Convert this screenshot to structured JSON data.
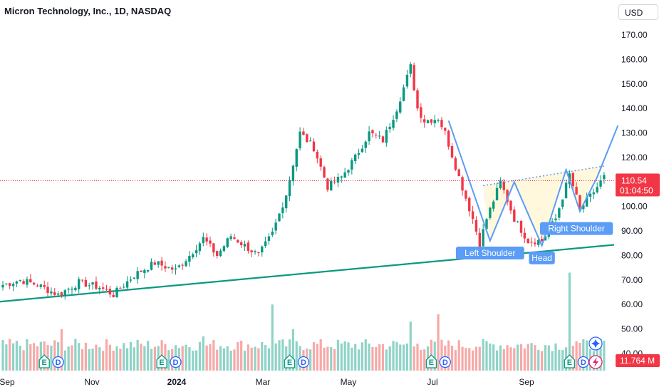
{
  "header": {
    "title": "Micron Technology, Inc., 1D, NASDAQ",
    "currency": "USD"
  },
  "chart_data": {
    "type": "candlestick",
    "y_axis": {
      "ticks": [
        "170.00",
        "160.00",
        "150.00",
        "140.00",
        "130.00",
        "120.00",
        "110.00",
        "100.00",
        "90.00",
        "80.00",
        "70.00",
        "60.00",
        "50.00",
        "40.00"
      ],
      "ylim": [
        36,
        178
      ]
    },
    "x_axis": {
      "ticks": [
        {
          "label": "Sep",
          "bold": false
        },
        {
          "label": "Nov",
          "bold": false
        },
        {
          "label": "2024",
          "bold": true
        },
        {
          "label": "Mar",
          "bold": false
        },
        {
          "label": "May",
          "bold": false
        },
        {
          "label": "Jul",
          "bold": false
        },
        {
          "label": "Sep",
          "bold": false
        }
      ]
    },
    "last_price": {
      "value": 110.54,
      "label": "110.54",
      "countdown": "01:04:50"
    },
    "volume_label": "11.764 M",
    "price_path": [
      [
        0,
        68
      ],
      [
        5,
        70
      ],
      [
        10,
        68
      ],
      [
        16,
        64
      ],
      [
        22,
        69
      ],
      [
        28,
        67
      ],
      [
        32,
        64
      ],
      [
        38,
        72
      ],
      [
        44,
        77
      ],
      [
        50,
        74
      ],
      [
        54,
        80
      ],
      [
        58,
        87
      ],
      [
        62,
        80
      ],
      [
        66,
        88
      ],
      [
        70,
        84
      ],
      [
        74,
        80
      ],
      [
        78,
        89
      ],
      [
        82,
        105
      ],
      [
        86,
        130
      ],
      [
        90,
        124
      ],
      [
        94,
        108
      ],
      [
        98,
        112
      ],
      [
        102,
        120
      ],
      [
        106,
        130
      ],
      [
        110,
        127
      ],
      [
        114,
        140
      ],
      [
        118,
        157
      ],
      [
        120,
        140
      ],
      [
        122,
        135
      ],
      [
        126,
        136
      ],
      [
        128,
        130
      ],
      [
        132,
        112
      ],
      [
        136,
        95
      ],
      [
        138,
        85
      ],
      [
        140,
        95
      ],
      [
        144,
        110
      ],
      [
        148,
        95
      ],
      [
        152,
        86
      ],
      [
        156,
        86
      ],
      [
        160,
        95
      ],
      [
        164,
        113
      ],
      [
        167,
        99
      ],
      [
        170,
        104
      ],
      [
        174,
        112
      ]
    ],
    "volume_spikes": [
      {
        "bar": 17,
        "value": 50
      },
      {
        "bar": 58,
        "value": 47
      },
      {
        "bar": 78,
        "value": 60
      },
      {
        "bar": 84,
        "value": 50
      },
      {
        "bar": 118,
        "value": 53
      },
      {
        "bar": 120,
        "value": 44
      },
      {
        "bar": 126,
        "value": 56
      },
      {
        "bar": 164,
        "value": 73
      },
      {
        "bar": 166,
        "value": 45
      }
    ],
    "earnings_markers": [
      {
        "bar": 12,
        "label": "E"
      },
      {
        "bar": 16,
        "label": "D"
      },
      {
        "bar": 46,
        "label": "E"
      },
      {
        "bar": 50,
        "label": "D"
      },
      {
        "bar": 83,
        "label": "E"
      },
      {
        "bar": 87,
        "label": "D"
      },
      {
        "bar": 124,
        "label": "E"
      },
      {
        "bar": 128,
        "label": "D"
      },
      {
        "bar": 164,
        "label": "E"
      },
      {
        "bar": 168,
        "label": "D"
      }
    ],
    "trendline": {
      "from": {
        "bar": -2,
        "price": 61
      },
      "to": {
        "bar": 178,
        "price": 84.5
      },
      "color": "#089981"
    },
    "neckline": {
      "from": {
        "bar": 139,
        "price": 108.5
      },
      "to": {
        "bar": 174,
        "price": 116.5
      },
      "color": "#5b9cf6"
    },
    "pattern_points": [
      {
        "bar": 129,
        "price": 135
      },
      {
        "bar": 141,
        "price": 86
      },
      {
        "bar": 148,
        "price": 110
      },
      {
        "bar": 156,
        "price": 84
      },
      {
        "bar": 163,
        "price": 115
      },
      {
        "bar": 167,
        "price": 98
      },
      {
        "bar": 172,
        "price": 112
      },
      {
        "bar": 178,
        "price": 133
      }
    ],
    "pattern_labels": [
      {
        "text": "Left Shoulder",
        "bar": 141,
        "price": 81
      },
      {
        "text": "Head",
        "bar": 156,
        "price": 79
      },
      {
        "text": "Right Shoulder",
        "bar": 166,
        "price": 91
      }
    ],
    "colors": {
      "up": "#089981",
      "down": "#f23645",
      "up_vol": "#8fd3c7",
      "down_vol": "#f7a9a7",
      "pattern": "#5b9cf6",
      "pattern_fill": "#fff7d6"
    }
  },
  "icons": {
    "alert": "sparkle-icon",
    "flash": "lightning-icon"
  }
}
